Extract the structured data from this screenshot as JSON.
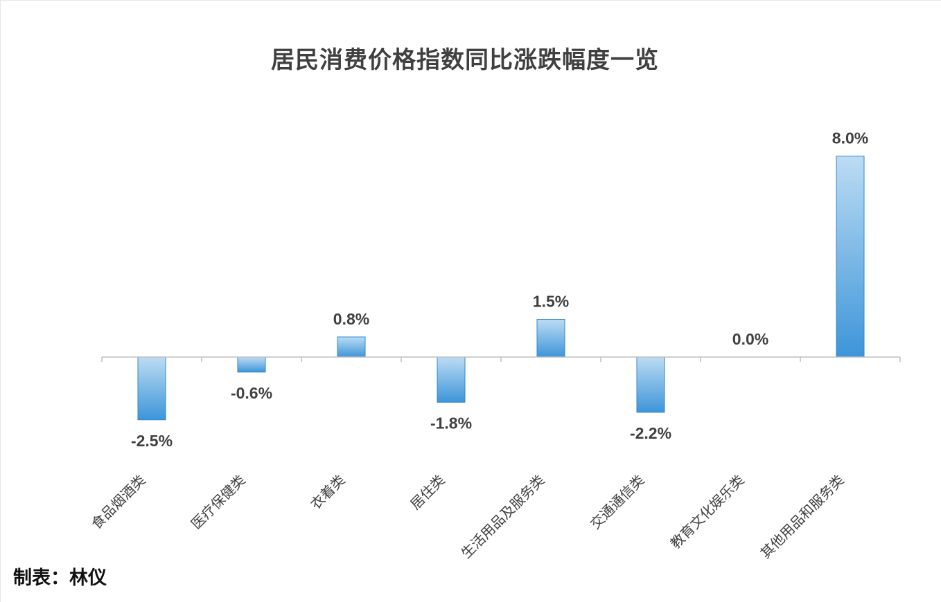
{
  "chart_data": {
    "type": "bar",
    "title": "居民消费价格指数同比涨跌幅度一览",
    "categories": [
      "食品烟酒类",
      "医疗保健类",
      "衣着类",
      "居住类",
      "生活用品及服务类",
      "交通通信类",
      "教育文化娱乐类",
      "其他用品和服务类"
    ],
    "values": [
      -2.5,
      -0.6,
      0.8,
      -1.8,
      1.5,
      -2.2,
      0.0,
      8.0
    ],
    "value_labels": [
      "-2.5%",
      "-0.6%",
      "0.8%",
      "-1.8%",
      "1.5%",
      "-2.2%",
      "0.0%",
      "8.0%"
    ],
    "xlabel": "",
    "ylabel": "",
    "grid": false,
    "legend": "none",
    "colors": {
      "bar_light": "#bcdcf3",
      "bar_dark": "#3d95d9",
      "bar_stroke": "#2f86cf",
      "axis": "#bfbfbf"
    }
  },
  "footer": {
    "credit": "制表：林仪"
  }
}
